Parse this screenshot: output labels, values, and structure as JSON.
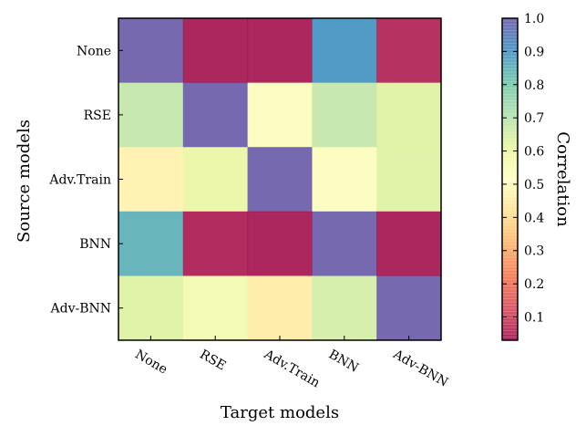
{
  "chart_data": {
    "type": "heatmap",
    "xlabel": "Target models",
    "ylabel": "Source models",
    "x_categories": [
      "None",
      "RSE",
      "Adv.Train",
      "BNN",
      "Adv-BNN"
    ],
    "y_categories": [
      "None",
      "RSE",
      "Adv.Train",
      "BNN",
      "Adv-BNN"
    ],
    "values": [
      [
        1.0,
        0.03,
        0.02,
        0.9,
        0.05
      ],
      [
        0.68,
        1.0,
        0.53,
        0.68,
        0.63
      ],
      [
        0.47,
        0.6,
        1.0,
        0.53,
        0.63
      ],
      [
        0.85,
        0.04,
        0.03,
        1.0,
        0.03
      ],
      [
        0.63,
        0.57,
        0.45,
        0.65,
        1.0
      ]
    ],
    "colorbar": {
      "label": "Correlation",
      "range": [
        0.03,
        1.0
      ],
      "ticks": [
        "0.1",
        "0.2",
        "0.3",
        "0.4",
        "0.5",
        "0.6",
        "0.7",
        "0.8",
        "0.9",
        "1.0"
      ],
      "colormap": "Spectral"
    }
  }
}
